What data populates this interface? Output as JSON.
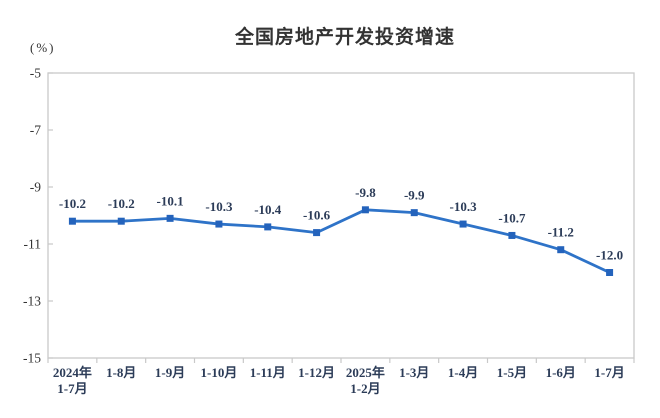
{
  "chart_data": {
    "type": "line",
    "title": "全国房地产开发投资增速",
    "unit_label": "(%)",
    "categories": [
      "2024年\n1-7月",
      "1-8月",
      "1-9月",
      "1-10月",
      "1-11月",
      "1-12月",
      "2025年\n1-2月",
      "1-3月",
      "1-4月",
      "1-5月",
      "1-6月",
      "1-7月"
    ],
    "values": [
      -10.2,
      -10.2,
      -10.1,
      -10.3,
      -10.4,
      -10.6,
      -9.8,
      -9.9,
      -10.3,
      -10.7,
      -11.2,
      -12.0
    ],
    "data_labels": [
      "-10.2",
      "-10.2",
      "-10.1",
      "-10.3",
      "-10.4",
      "-10.6",
      "-9.8",
      "-9.9",
      "-10.3",
      "-10.7",
      "-11.2",
      "-12.0"
    ],
    "y_ticks": [
      -5,
      -7,
      -9,
      -11,
      -13,
      -15
    ],
    "ylim": [
      -15,
      -5
    ],
    "xlabel": "",
    "ylabel": "(%)",
    "grid": false,
    "legend": "none",
    "colors": {
      "line": "#2E73C8",
      "marker": "#2463BC",
      "axis": "#C9C9C9",
      "tick_label": "#333333",
      "category_label": "#2C3C58",
      "data_label": "#2C3C58"
    }
  }
}
